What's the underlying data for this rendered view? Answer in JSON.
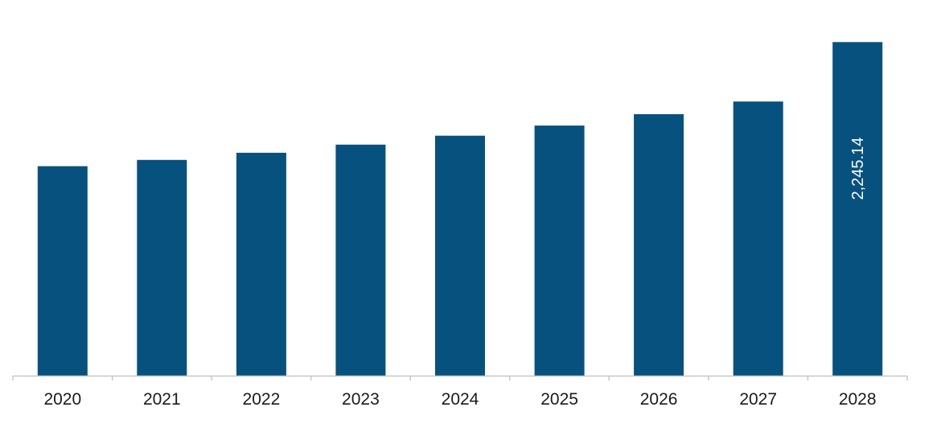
{
  "chart_data": {
    "type": "bar",
    "categories": [
      "2020",
      "2021",
      "2022",
      "2023",
      "2024",
      "2025",
      "2026",
      "2027",
      "2028"
    ],
    "values": [
      1410,
      1452,
      1500,
      1555,
      1615,
      1683,
      1760,
      1845,
      2245.14
    ],
    "data_labels": [
      "",
      "",
      "",
      "",
      "",
      "",
      "",
      "",
      "2,245.14"
    ],
    "title": "",
    "xlabel": "",
    "ylabel": "",
    "ylim": [
      0,
      2420
    ],
    "grid": false,
    "legend": "none",
    "bar_color": "#07517e",
    "axis_color": "#c8c8c8"
  }
}
